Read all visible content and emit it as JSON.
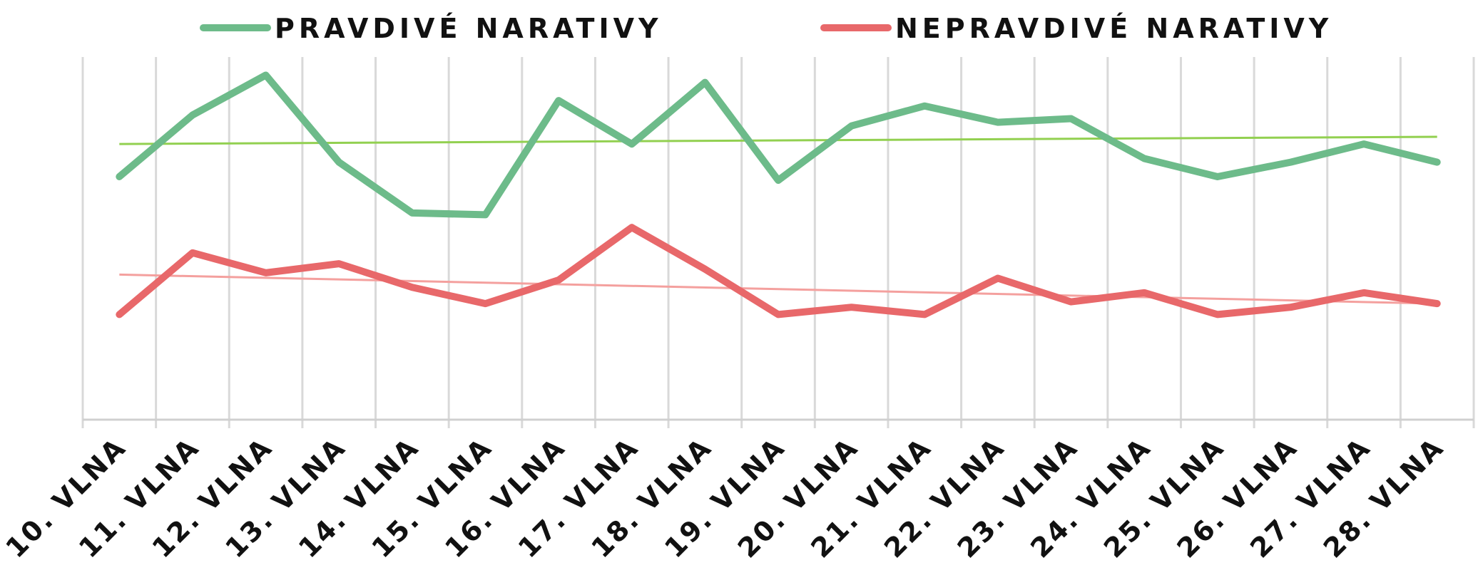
{
  "chart_data": {
    "type": "line",
    "title": "",
    "xlabel": "",
    "ylabel": "",
    "ylim": [
      0,
      100
    ],
    "grid": "vertical",
    "legend": "top",
    "categories": [
      "10. VLNA",
      "11. VLNA",
      "12. VLNA",
      "13. VLNA",
      "14. VLNA",
      "15. VLNA",
      "16. VLNA",
      "17. VLNA",
      "18. VLNA",
      "19. VLNA",
      "20. VLNA",
      "21. VLNA",
      "22. VLNA",
      "23. VLNA",
      "24. VLNA",
      "25. VLNA",
      "26. VLNA",
      "27. VLNA",
      "28. VLNA"
    ],
    "series": [
      {
        "name": "PRAVDIVÉ NARATIVY",
        "color": "#6dbb8a",
        "values": [
          67,
          84,
          95,
          71,
          57,
          56.5,
          88,
          76,
          93,
          66,
          81,
          86.5,
          82,
          83,
          72,
          67,
          71,
          76,
          71
        ],
        "trend": {
          "start": 76,
          "end": 78,
          "color": "#92d050"
        }
      },
      {
        "name": "NEPRAVDIVÉ NARATIVY",
        "color": "#e8686a",
        "values": [
          29,
          46,
          40.5,
          43,
          36.5,
          32,
          38.5,
          53,
          41.5,
          29,
          31,
          29,
          39,
          32.5,
          35,
          29,
          31,
          35,
          32
        ],
        "trend": {
          "start": 40,
          "end": 32,
          "color": "#f4a09e"
        }
      }
    ]
  }
}
